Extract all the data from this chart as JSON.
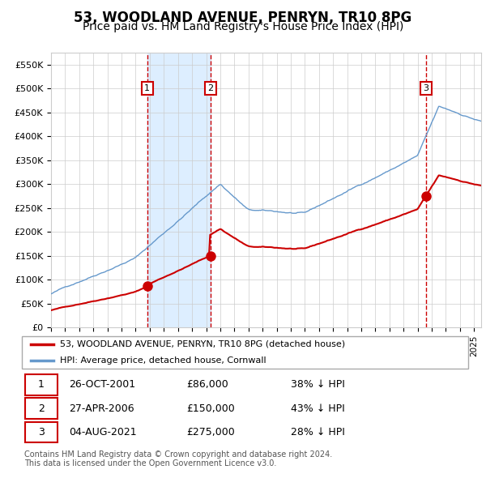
{
  "title": "53, WOODLAND AVENUE, PENRYN, TR10 8PG",
  "subtitle": "Price paid vs. HM Land Registry's House Price Index (HPI)",
  "title_fontsize": 12,
  "subtitle_fontsize": 10,
  "ylim": [
    0,
    575000
  ],
  "yticks": [
    0,
    50000,
    100000,
    150000,
    200000,
    250000,
    300000,
    350000,
    400000,
    450000,
    500000,
    550000
  ],
  "ytick_labels": [
    "£0",
    "£50K",
    "£100K",
    "£150K",
    "£200K",
    "£250K",
    "£300K",
    "£350K",
    "£400K",
    "£450K",
    "£500K",
    "£550K"
  ],
  "xlim_start": 1995.0,
  "xlim_end": 2025.5,
  "background_color": "#ffffff",
  "grid_color": "#cccccc",
  "hpi_line_color": "#6699cc",
  "price_line_color": "#cc0000",
  "marker_color": "#cc0000",
  "vline_color": "#cc0000",
  "shade_color": "#ddeeff",
  "purchases": [
    {
      "label": "1",
      "date_num": 2001.82,
      "price": 86000
    },
    {
      "label": "2",
      "date_num": 2006.32,
      "price": 150000
    },
    {
      "label": "3",
      "date_num": 2021.59,
      "price": 275000
    }
  ],
  "legend_entries": [
    "53, WOODLAND AVENUE, PENRYN, TR10 8PG (detached house)",
    "HPI: Average price, detached house, Cornwall"
  ],
  "table_rows": [
    [
      "1",
      "26-OCT-2001",
      "£86,000",
      "38% ↓ HPI"
    ],
    [
      "2",
      "27-APR-2006",
      "£150,000",
      "43% ↓ HPI"
    ],
    [
      "3",
      "04-AUG-2021",
      "£275,000",
      "28% ↓ HPI"
    ]
  ],
  "footer": "Contains HM Land Registry data © Crown copyright and database right 2024.\nThis data is licensed under the Open Government Licence v3.0."
}
